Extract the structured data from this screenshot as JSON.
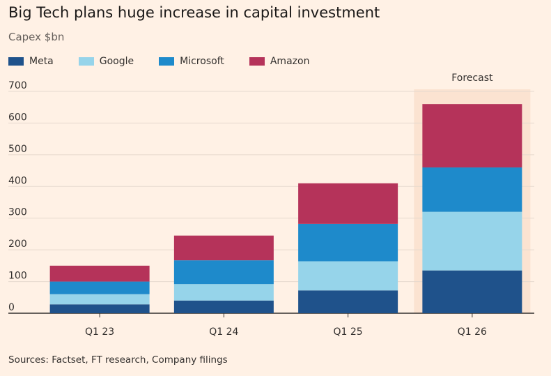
{
  "title": "Big Tech plans huge increase in capital investment",
  "subtitle": "Capex $bn",
  "source": "Sources: Factset, FT research, Company filings",
  "forecast_label": "Forecast",
  "chart_data": {
    "type": "bar",
    "stacked": true,
    "title": "Big Tech plans huge increase in capital investment",
    "ylabel": "Capex $bn",
    "ylim": [
      0,
      700
    ],
    "yticks": [
      0,
      100,
      200,
      300,
      400,
      500,
      600,
      700
    ],
    "categories": [
      "Q1 23",
      "Q1 24",
      "Q1 25",
      "Q1 26"
    ],
    "highlight_category": "Q1 26",
    "highlight_label": "Forecast",
    "series": [
      {
        "name": "Meta",
        "color": "#1F528B",
        "values": [
          28,
          40,
          72,
          135
        ]
      },
      {
        "name": "Google",
        "color": "#96D4EA",
        "values": [
          32,
          52,
          92,
          185
        ]
      },
      {
        "name": "Microsoft",
        "color": "#1E8ACB",
        "values": [
          40,
          75,
          118,
          140
        ]
      },
      {
        "name": "Amazon",
        "color": "#B5335A",
        "values": [
          50,
          78,
          128,
          200
        ]
      }
    ],
    "legend_position": "top-left",
    "grid": true
  }
}
